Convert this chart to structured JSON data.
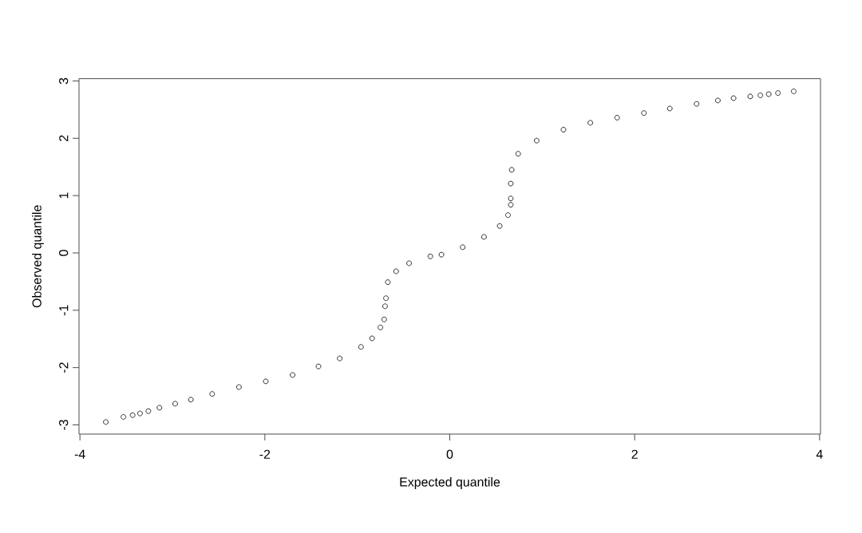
{
  "chart_data": {
    "type": "scatter",
    "xlabel": "Expected quantile",
    "ylabel": "Observed quantile",
    "xlim": [
      -4.01,
      4.01
    ],
    "ylim": [
      -3.16,
      3.04
    ],
    "xticks": [
      -4,
      -2,
      0,
      2,
      4
    ],
    "yticks": [
      -3,
      -2,
      -1,
      0,
      1,
      2,
      3
    ],
    "grid": false,
    "marker": "circle",
    "series": [
      {
        "color": "#000000",
        "x": [
          -3.72,
          -3.53,
          -3.43,
          -3.35,
          -3.26,
          -3.14,
          -2.97,
          -2.8,
          -2.57,
          -2.28,
          -1.99,
          -1.7,
          -1.42,
          -1.19,
          -0.96,
          -0.84,
          -0.75,
          -0.71,
          -0.7,
          -0.69,
          -0.67,
          -0.58,
          -0.44,
          -0.21,
          -0.09,
          0.14,
          0.37,
          0.54,
          0.63,
          0.66,
          0.66,
          0.66,
          0.67,
          0.74,
          0.94,
          1.23,
          1.52,
          1.81,
          2.1,
          2.38,
          2.67,
          2.9,
          3.07,
          3.25,
          3.36,
          3.45,
          3.55,
          3.72
        ],
        "values": [
          -2.95,
          -2.86,
          -2.83,
          -2.8,
          -2.76,
          -2.7,
          -2.63,
          -2.56,
          -2.46,
          -2.34,
          -2.24,
          -2.13,
          -1.98,
          -1.84,
          -1.64,
          -1.49,
          -1.3,
          -1.16,
          -0.93,
          -0.79,
          -0.51,
          -0.32,
          -0.18,
          -0.06,
          -0.03,
          0.1,
          0.28,
          0.47,
          0.66,
          0.84,
          0.95,
          1.21,
          1.45,
          1.73,
          1.96,
          2.15,
          2.27,
          2.36,
          2.44,
          2.52,
          2.6,
          2.66,
          2.7,
          2.73,
          2.75,
          2.77,
          2.79,
          2.82
        ]
      }
    ]
  }
}
